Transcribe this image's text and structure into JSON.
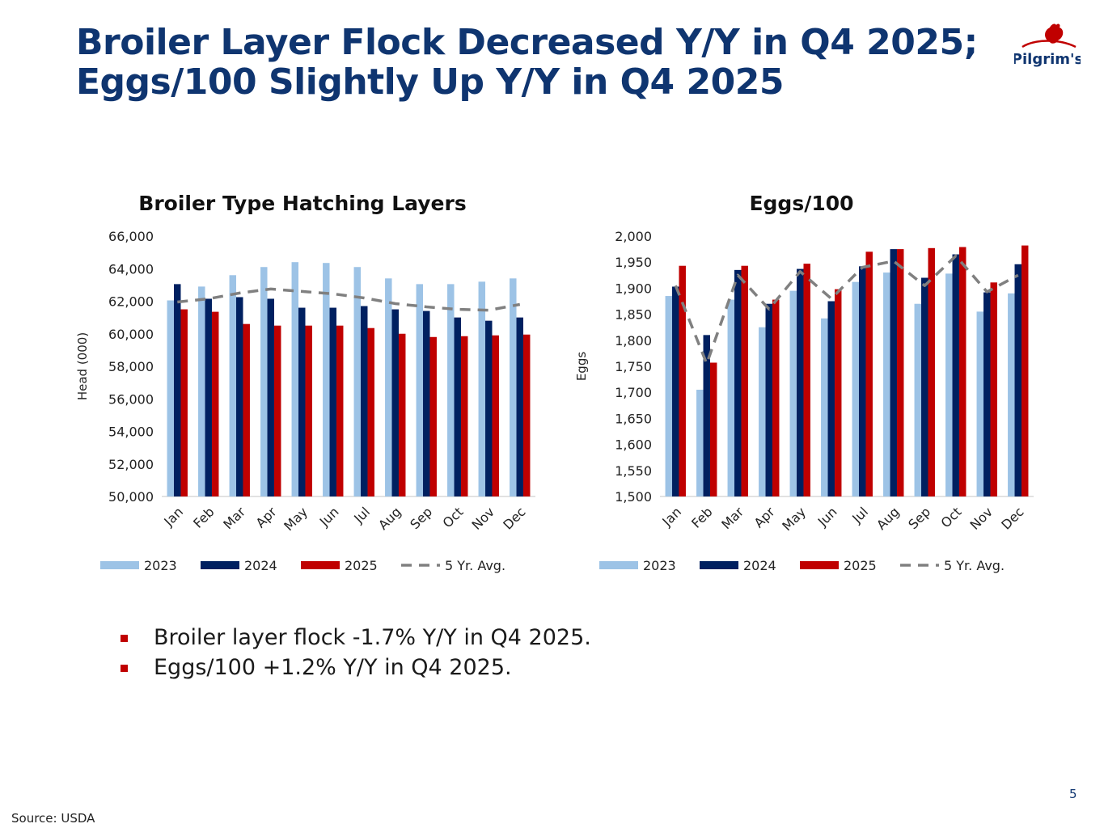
{
  "title": {
    "line1": "Broiler Layer Flock Decreased Y/Y in Q4 2025;",
    "line2": "Eggs/100 Slightly Up Y/Y in Q4 2025"
  },
  "logo": {
    "text": "Pilgrim's"
  },
  "colors": {
    "title": "#0f3570",
    "s2023": "#9dc3e6",
    "s2024": "#002060",
    "s2025": "#c00000",
    "avg": "#808080",
    "bullet": "#c00000"
  },
  "chart_data": [
    {
      "type": "bar",
      "title": "Broiler Type Hatching Layers",
      "xlabel": "",
      "ylabel": "Head (000)",
      "ylim": [
        50000,
        66000
      ],
      "yticks": [
        50000,
        52000,
        54000,
        56000,
        58000,
        60000,
        62000,
        64000,
        66000
      ],
      "ytick_labels": [
        "50,000",
        "52,000",
        "54,000",
        "56,000",
        "58,000",
        "60,000",
        "62,000",
        "64,000",
        "66,000"
      ],
      "categories": [
        "Jan",
        "Feb",
        "Mar",
        "Apr",
        "May",
        "Jun",
        "Jul",
        "Aug",
        "Sep",
        "Oct",
        "Nov",
        "Dec"
      ],
      "series": [
        {
          "name": "2023",
          "values": [
            62050,
            62900,
            63600,
            64100,
            64400,
            64350,
            64100,
            63400,
            63050,
            63050,
            63200,
            63400
          ]
        },
        {
          "name": "2024",
          "values": [
            63050,
            62150,
            62250,
            62150,
            61600,
            61600,
            61700,
            61500,
            61400,
            61000,
            60800,
            61000
          ]
        },
        {
          "name": "2025",
          "values": [
            61500,
            61350,
            60600,
            60500,
            60500,
            60500,
            60350,
            60000,
            59800,
            59850,
            59900,
            59950
          ]
        }
      ],
      "line": {
        "name": "5 Yr. Avg.",
        "values": [
          61950,
          62150,
          62500,
          62750,
          62600,
          62450,
          62200,
          61850,
          61650,
          61500,
          61450,
          61800
        ]
      },
      "legend": [
        "2023",
        "2024",
        "2025",
        "5 Yr. Avg."
      ]
    },
    {
      "type": "bar",
      "title": "Eggs/100",
      "xlabel": "",
      "ylabel": "Eggs",
      "ylim": [
        1500,
        2000
      ],
      "yticks": [
        1500,
        1550,
        1600,
        1650,
        1700,
        1750,
        1800,
        1850,
        1900,
        1950,
        2000
      ],
      "ytick_labels": [
        "1,500",
        "1,550",
        "1,600",
        "1,650",
        "1,700",
        "1,750",
        "1,800",
        "1,850",
        "1,900",
        "1,950",
        "2,000"
      ],
      "categories": [
        "Jan",
        "Feb",
        "Mar",
        "Apr",
        "May",
        "Jun",
        "Jul",
        "Aug",
        "Sep",
        "Oct",
        "Nov",
        "Dec"
      ],
      "series": [
        {
          "name": "2023",
          "values": [
            1885,
            1705,
            1878,
            1825,
            1895,
            1842,
            1912,
            1930,
            1870,
            1928,
            1855,
            1890
          ]
        },
        {
          "name": "2024",
          "values": [
            1903,
            1810,
            1935,
            1870,
            1937,
            1875,
            1942,
            1975,
            1920,
            1965,
            1892,
            1946
          ]
        },
        {
          "name": "2025",
          "values": [
            1943,
            1757,
            1943,
            1878,
            1947,
            1898,
            1970,
            1975,
            1977,
            1979,
            1911,
            1982
          ]
        }
      ],
      "line": {
        "name": "5 Yr. Avg.",
        "values": [
          1905,
          1755,
          1925,
          1860,
          1932,
          1880,
          1940,
          1952,
          1905,
          1962,
          1893,
          1925
        ]
      },
      "legend": [
        "2023",
        "2024",
        "2025",
        "5 Yr. Avg."
      ]
    }
  ],
  "bullets": [
    "Broiler layer flock -1.7% Y/Y in Q4 2025.",
    "Eggs/100 +1.2% Y/Y in Q4 2025."
  ],
  "source": "Source: USDA",
  "page_number": "5"
}
